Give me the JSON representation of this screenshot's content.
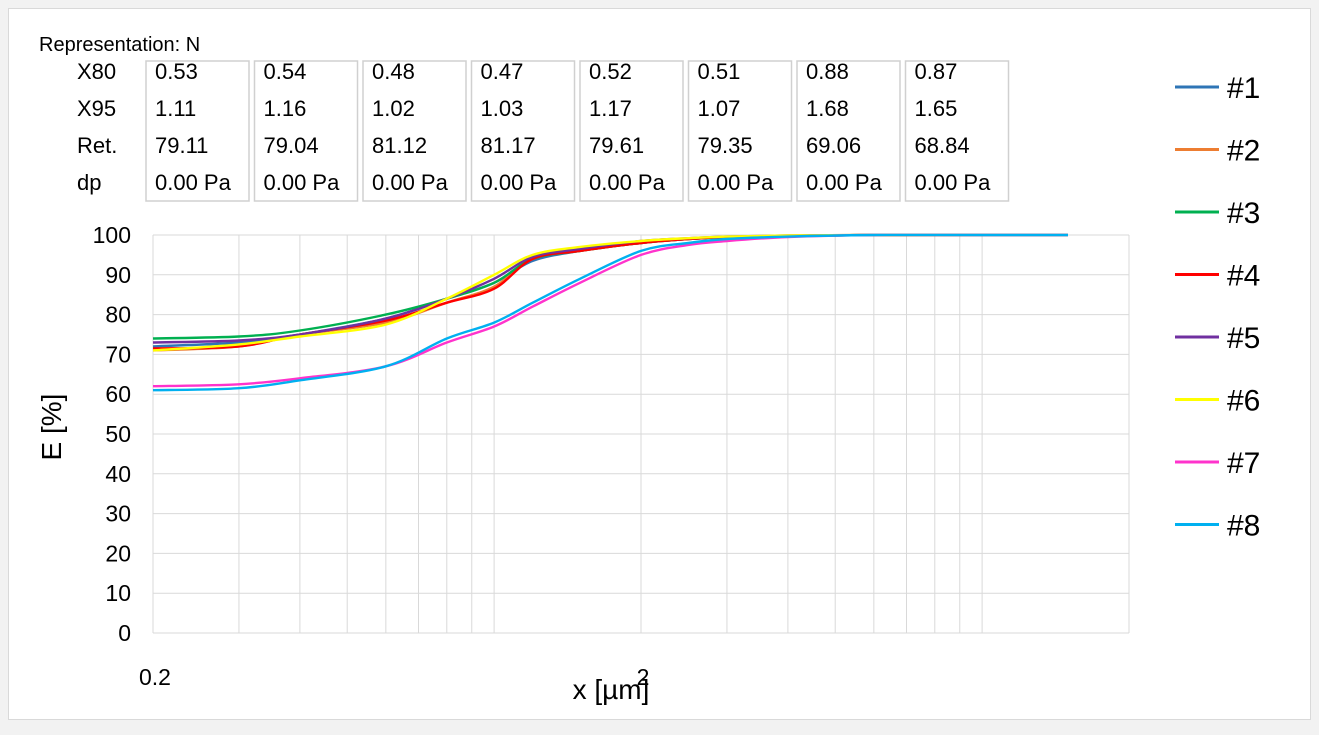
{
  "chart_data": {
    "type": "line",
    "representation_label": "Representation: N",
    "xlabel": "x [µm]",
    "ylabel": "E [%]",
    "x_scale": "log",
    "xlim": [
      0.2,
      20
    ],
    "ylim": [
      0,
      100
    ],
    "x_tick_labels": [
      {
        "value": 0.2,
        "label": "0.2"
      },
      {
        "value": 2,
        "label": "2"
      }
    ],
    "y_ticks": [
      "0",
      "10",
      "20",
      "30",
      "40",
      "50",
      "60",
      "70",
      "80",
      "90",
      "100"
    ],
    "grid": true,
    "legend_position": "right",
    "stats_table": {
      "row_labels": [
        "X80",
        "X95",
        "Ret.",
        "dp"
      ],
      "columns": [
        [
          "0.53",
          "1.11",
          "79.11",
          "0.00 Pa"
        ],
        [
          "0.54",
          "1.16",
          "79.04",
          "0.00 Pa"
        ],
        [
          "0.48",
          "1.02",
          "81.12",
          "0.00 Pa"
        ],
        [
          "0.47",
          "1.03",
          "81.17",
          "0.00 Pa"
        ],
        [
          "0.52",
          "1.17",
          "79.61",
          "0.00 Pa"
        ],
        [
          "0.51",
          "1.07",
          "79.35",
          "0.00 Pa"
        ],
        [
          "0.88",
          "1.68",
          "69.06",
          "0.00 Pa"
        ],
        [
          "0.87",
          "1.65",
          "68.84",
          "0.00 Pa"
        ]
      ]
    },
    "x": [
      0.2,
      0.3,
      0.4,
      0.6,
      0.8,
      1.0,
      1.2,
      1.5,
      2.0,
      2.5,
      3.0,
      4.0,
      6.0,
      10.0,
      15.0
    ],
    "series": [
      {
        "name": "#1",
        "color": "#2e75b6",
        "values": [
          72,
          73,
          75,
          79,
          84,
          88,
          93.5,
          96,
          98,
          99,
          99.5,
          99.8,
          100,
          100,
          100
        ]
      },
      {
        "name": "#2",
        "color": "#ed7d31",
        "values": [
          71,
          72,
          75,
          78,
          83,
          87,
          94,
          96,
          98,
          99,
          99.5,
          99.8,
          100,
          100,
          100
        ]
      },
      {
        "name": "#3",
        "color": "#00b050",
        "values": [
          74,
          74.5,
          76,
          80,
          84,
          88,
          94,
          96,
          98,
          99,
          99.5,
          99.8,
          100,
          100,
          100
        ]
      },
      {
        "name": "#4",
        "color": "#ff0000",
        "values": [
          71.5,
          72,
          75,
          78.5,
          83,
          86.5,
          94,
          96,
          98,
          99,
          99.5,
          99.8,
          100,
          100,
          100
        ]
      },
      {
        "name": "#5",
        "color": "#7030a0",
        "values": [
          73,
          73.5,
          75,
          79,
          84,
          89,
          94.5,
          96.5,
          98.5,
          99.2,
          99.6,
          99.9,
          100,
          100,
          100
        ]
      },
      {
        "name": "#6",
        "color": "#ffff00",
        "values": [
          71,
          72.5,
          74.5,
          77.5,
          84,
          90,
          95,
          97,
          98.5,
          99.2,
          99.6,
          99.9,
          100,
          100,
          100
        ]
      },
      {
        "name": "#7",
        "color": "#ff33cc",
        "values": [
          62,
          62.5,
          64,
          67,
          73,
          77,
          82,
          88,
          95,
          97.5,
          98.5,
          99.5,
          100,
          100,
          100
        ]
      },
      {
        "name": "#8",
        "color": "#00b0f0",
        "values": [
          61,
          61.5,
          63.5,
          67,
          74,
          78,
          83,
          89,
          96,
          98,
          99,
          99.6,
          100,
          100,
          100
        ]
      }
    ]
  }
}
